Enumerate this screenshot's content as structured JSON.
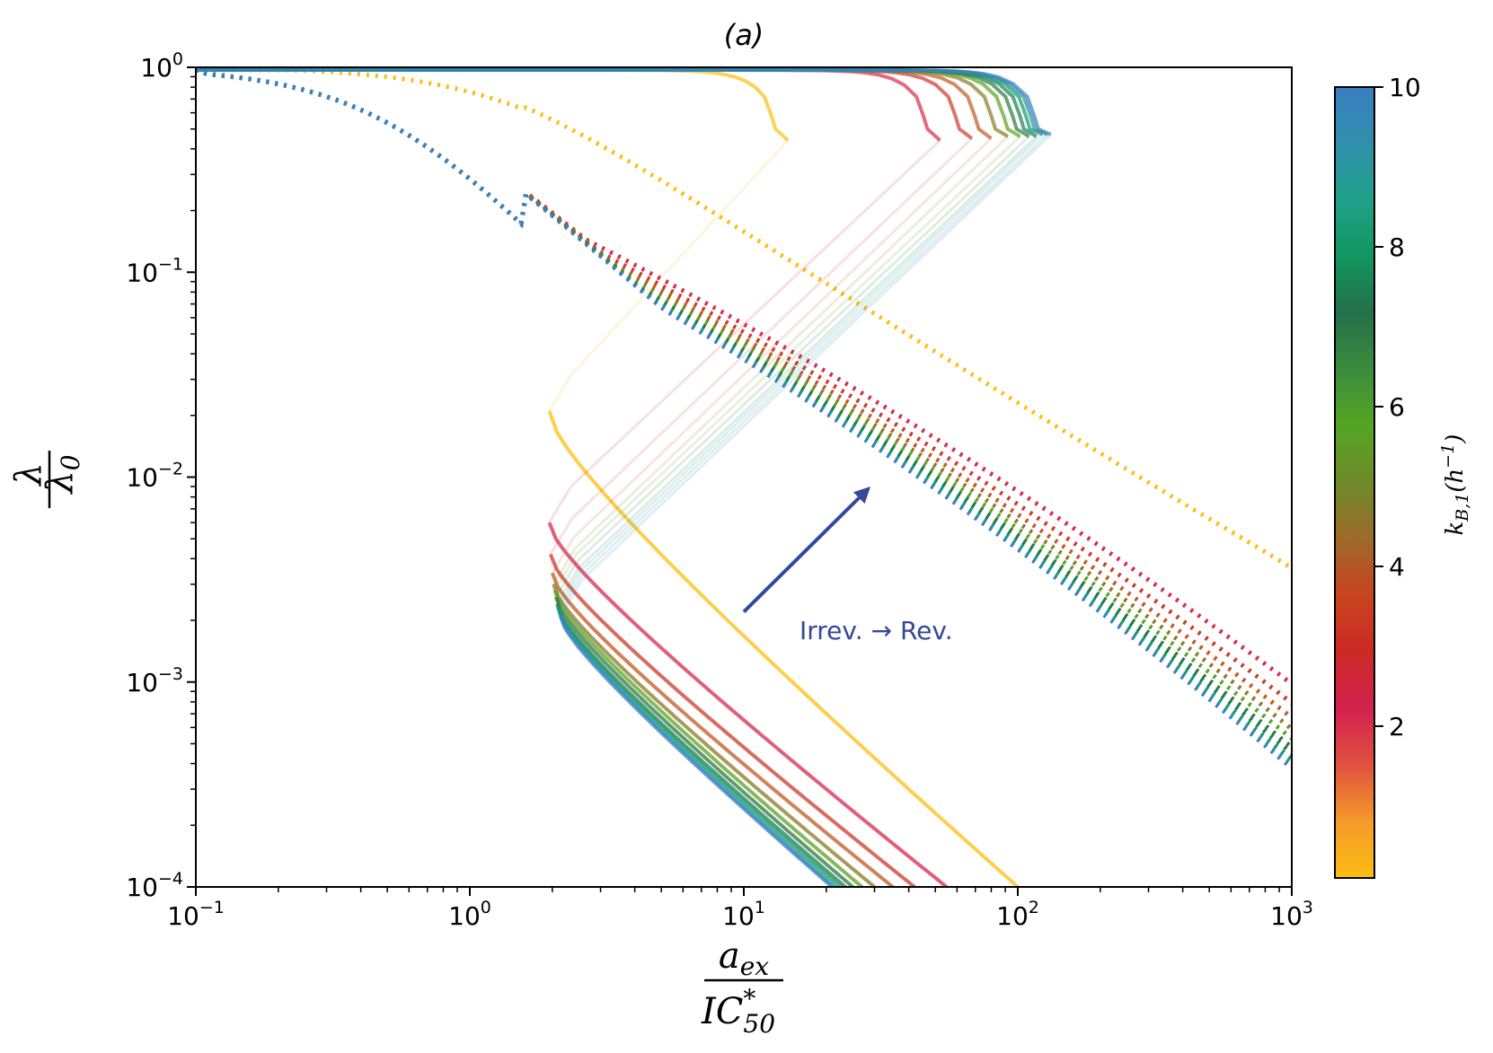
{
  "chart_data": {
    "type": "line",
    "title": "(a)",
    "xscale": "log",
    "yscale": "log",
    "xlim": [
      0.1,
      1000
    ],
    "ylim": [
      0.0001,
      1
    ],
    "x_ticks": [
      {
        "base": "10",
        "exp": "−1"
      },
      {
        "base": "10",
        "exp": "0"
      },
      {
        "base": "10",
        "exp": "1"
      },
      {
        "base": "10",
        "exp": "2"
      },
      {
        "base": "10",
        "exp": "3"
      }
    ],
    "y_ticks": [
      {
        "base": "10",
        "exp": "−4"
      },
      {
        "base": "10",
        "exp": "−3"
      },
      {
        "base": "10",
        "exp": "−2"
      },
      {
        "base": "10",
        "exp": "−1"
      },
      {
        "base": "10",
        "exp": "0"
      }
    ],
    "xlabel": {
      "num": "a",
      "num_sub": "ex",
      "den": "IC",
      "den_sub": "50",
      "den_sup": "*"
    },
    "ylabel": {
      "num": "λ",
      "den": "λ",
      "den_sub": "0"
    },
    "annotation": {
      "text": "Irrev. → Rev.",
      "color": "#34489a",
      "arrow_from": [
        10,
        0.0022
      ],
      "arrow_to": [
        29,
        0.009
      ]
    },
    "colorbar": {
      "label": "k",
      "label_sub": "B,1",
      "label_rest": "(h",
      "label_sup": "−1",
      "label_close": ")",
      "range": [
        0.1,
        10
      ],
      "ticks": [
        "2",
        "4",
        "6",
        "8",
        "10"
      ],
      "tick_values": [
        2,
        4,
        6,
        8,
        10
      ],
      "colors": [
        "#fdbd10",
        "#f49a2a",
        "#e0513e",
        "#d2224f",
        "#cb2a24",
        "#c8441e",
        "#9d6a29",
        "#6d8a2a",
        "#55a524",
        "#3b8c3c",
        "#24704a",
        "#11965f",
        "#20a08a",
        "#2f8fab",
        "#3a7ec2"
      ]
    },
    "series": [
      {
        "k": 0.1,
        "color": "#fdbd10",
        "knee_x": 14.5,
        "knee_y": 0.44,
        "x_rev_start": 0.13,
        "x_end": 14.5,
        "ret_x": 1.95,
        "ret_y": 0.021,
        "tail_x": 100,
        "tail_y": 0.0001,
        "dotted_end": 0.0036
      },
      {
        "k": 1.0,
        "color": "#d82a4f",
        "knee_x": 52,
        "knee_y": 0.44,
        "x_rev_start": 0.13,
        "x_end": 52,
        "ret_x": 1.95,
        "ret_y": 0.006,
        "tail_x": 55,
        "tail_y": 0.0001,
        "dotted_end": 0.00098
      },
      {
        "k": 2.0,
        "color": "#cd3a2a",
        "knee_x": 68,
        "knee_y": 0.45,
        "x_rev_start": 0.13,
        "x_end": 68,
        "ret_x": 1.97,
        "ret_y": 0.0042,
        "tail_x": 42,
        "tail_y": 0.0001,
        "dotted_end": 0.00079
      },
      {
        "k": 3.0,
        "color": "#c05a22",
        "knee_x": 80,
        "knee_y": 0.45,
        "x_rev_start": 0.13,
        "x_end": 80,
        "ret_x": 2.0,
        "ret_y": 0.0034,
        "tail_x": 35,
        "tail_y": 0.0001,
        "dotted_end": 0.00067
      },
      {
        "k": 4.0,
        "color": "#8a7a25",
        "knee_x": 92,
        "knee_y": 0.46,
        "x_rev_start": 0.13,
        "x_end": 92,
        "ret_x": 2.02,
        "ret_y": 0.003,
        "tail_x": 30,
        "tail_y": 0.0001,
        "dotted_end": 0.00059
      },
      {
        "k": 5.0,
        "color": "#5aa324",
        "knee_x": 102,
        "knee_y": 0.46,
        "x_rev_start": 0.13,
        "x_end": 102,
        "ret_x": 2.04,
        "ret_y": 0.0028,
        "tail_x": 27,
        "tail_y": 0.0001,
        "dotted_end": 0.00053
      },
      {
        "k": 6.0,
        "color": "#2e7a40",
        "knee_x": 110,
        "knee_y": 0.46,
        "x_rev_start": 0.13,
        "x_end": 110,
        "ret_x": 2.06,
        "ret_y": 0.0026,
        "tail_x": 25,
        "tail_y": 0.0001,
        "dotted_end": 0.00048
      },
      {
        "k": 7.0,
        "color": "#1b7d52",
        "knee_x": 117,
        "knee_y": 0.46,
        "x_rev_start": 0.13,
        "x_end": 117,
        "ret_x": 2.08,
        "ret_y": 0.0024,
        "tail_x": 23.5,
        "tail_y": 0.0001,
        "dotted_end": 0.00045
      },
      {
        "k": 8.0,
        "color": "#149a6a",
        "knee_x": 123,
        "knee_y": 0.47,
        "x_rev_start": 0.13,
        "x_end": 123,
        "ret_x": 2.1,
        "ret_y": 0.0023,
        "tail_x": 22.5,
        "tail_y": 0.0001,
        "dotted_end": 0.00042
      },
      {
        "k": 9.0,
        "color": "#2294a0",
        "knee_x": 128,
        "knee_y": 0.47,
        "x_rev_start": 0.13,
        "x_end": 128,
        "ret_x": 2.12,
        "ret_y": 0.0022,
        "tail_x": 21.5,
        "tail_y": 0.0001,
        "dotted_end": 0.0004
      },
      {
        "k": 10.0,
        "color": "#3a7ec2",
        "knee_x": 132,
        "knee_y": 0.47,
        "x_rev_start": 0.13,
        "x_end": 132,
        "ret_x": 2.14,
        "ret_y": 0.0021,
        "tail_x": 21,
        "tail_y": 0.0001,
        "dotted_end": 0.00038
      }
    ]
  }
}
